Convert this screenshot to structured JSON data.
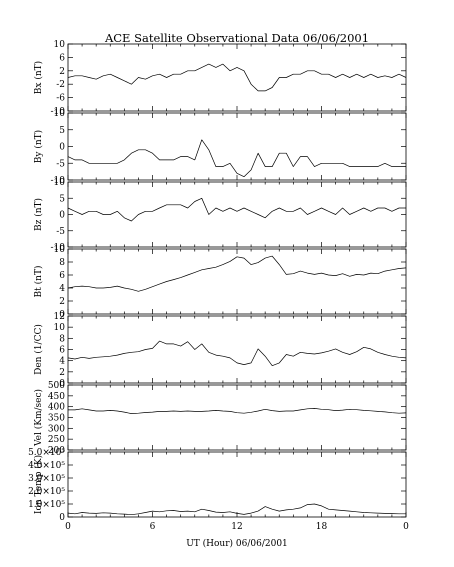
{
  "chart_data": {
    "type": "line",
    "title": "ACE Satellite Observational Data   06/06/2001",
    "xlabel": "UT (Hour)   06/06/2001",
    "xlim": [
      0,
      24
    ],
    "x_tick_labels": [
      "0",
      "6",
      "12",
      "18",
      "0"
    ],
    "panels": [
      {
        "ylabel": "Bx (nT)",
        "ylim": [
          -10,
          10
        ],
        "y_tick_labels": [
          "10",
          "6",
          "2",
          "-2",
          "-6",
          "-10"
        ],
        "series": [
          {
            "x": [
              0,
              0.5,
              1,
              1.5,
              2,
              2.5,
              3,
              3.5,
              4,
              4.5,
              5,
              5.5,
              6,
              6.5,
              7,
              7.5,
              8,
              8.5,
              9,
              9.5,
              10,
              10.5,
              11,
              11.5,
              12,
              12.5,
              13,
              13.5,
              14,
              14.5,
              15,
              15.5,
              16,
              16.5,
              17,
              17.5,
              18,
              18.5,
              19,
              19.5,
              20,
              20.5,
              21,
              21.5,
              22,
              22.5,
              23,
              23.5,
              24
            ],
            "y": [
              0,
              0.5,
              0.5,
              0,
              -0.5,
              0.5,
              1,
              0,
              -1,
              -2,
              0,
              -0.5,
              0.5,
              1,
              0,
              1,
              1,
              2,
              2,
              3,
              4,
              3,
              4,
              2,
              3,
              2,
              -2,
              -4,
              -4,
              -3,
              0,
              0,
              1,
              1,
              2,
              2,
              1,
              1,
              0,
              1,
              0,
              1,
              0,
              1,
              0,
              0.5,
              0,
              1,
              0
            ]
          }
        ]
      },
      {
        "ylabel": "By (nT)",
        "ylim": [
          -10,
          10
        ],
        "y_tick_labels": [
          "10",
          "5",
          "0",
          "-5",
          "-10"
        ],
        "series": [
          {
            "x": [
              0,
              0.5,
              1,
              1.5,
              2,
              2.5,
              3,
              3.5,
              4,
              4.5,
              5,
              5.5,
              6,
              6.5,
              7,
              7.5,
              8,
              8.5,
              9,
              9.5,
              10,
              10.5,
              11,
              11.5,
              12,
              12.5,
              13,
              13.5,
              14,
              14.5,
              15,
              15.5,
              16,
              16.5,
              17,
              17.5,
              18,
              18.5,
              19,
              19.5,
              20,
              20.5,
              21,
              21.5,
              22,
              22.5,
              23,
              23.5,
              24
            ],
            "y": [
              -3,
              -4,
              -4,
              -5,
              -5,
              -5,
              -5,
              -5,
              -4,
              -2,
              -1,
              -1,
              -2,
              -4,
              -4,
              -4,
              -3,
              -3,
              -4,
              2,
              -1,
              -6,
              -6,
              -5,
              -8,
              -9,
              -7,
              -2,
              -6,
              -6,
              -2,
              -2,
              -6,
              -3,
              -3,
              -6,
              -5,
              -5,
              -5,
              -5,
              -6,
              -6,
              -6,
              -6,
              -6,
              -5,
              -6,
              -6,
              -6
            ]
          }
        ]
      },
      {
        "ylabel": "Bz (nT)",
        "ylim": [
          -10,
          10
        ],
        "y_tick_labels": [
          "10",
          "5",
          "0",
          "-5",
          "-10"
        ],
        "series": [
          {
            "x": [
              0,
              0.5,
              1,
              1.5,
              2,
              2.5,
              3,
              3.5,
              4,
              4.5,
              5,
              5.5,
              6,
              6.5,
              7,
              7.5,
              8,
              8.5,
              9,
              9.5,
              10,
              10.5,
              11,
              11.5,
              12,
              12.5,
              13,
              13.5,
              14,
              14.5,
              15,
              15.5,
              16,
              16.5,
              17,
              17.5,
              18,
              18.5,
              19,
              19.5,
              20,
              20.5,
              21,
              21.5,
              22,
              22.5,
              23,
              23.5,
              24
            ],
            "y": [
              2,
              1,
              0,
              1,
              1,
              0,
              0,
              1,
              -1,
              -2,
              0,
              1,
              1,
              2,
              3,
              3,
              3,
              2,
              4,
              5,
              0,
              2,
              1,
              2,
              1,
              2,
              1,
              0,
              -1,
              1,
              2,
              1,
              1,
              2,
              0,
              1,
              2,
              1,
              0,
              2,
              0,
              1,
              2,
              1,
              2,
              2,
              1,
              2,
              2
            ]
          }
        ]
      },
      {
        "ylabel": "Bt (nT)",
        "ylim": [
          0,
          10
        ],
        "y_tick_labels": [
          "10",
          "8",
          "6",
          "4",
          "2",
          "0"
        ],
        "series": [
          {
            "x": [
              0,
              0.5,
              1,
              1.5,
              2,
              2.5,
              3,
              3.5,
              4,
              4.5,
              5,
              5.5,
              6,
              6.5,
              7,
              7.5,
              8,
              8.5,
              9,
              9.5,
              10,
              10.5,
              11,
              11.5,
              12,
              12.5,
              13,
              13.5,
              14,
              14.5,
              15,
              15.5,
              16,
              16.5,
              17,
              17.5,
              18,
              18.5,
              19,
              19.5,
              20,
              20.5,
              21,
              21.5,
              22,
              22.5,
              23,
              23.5,
              24
            ],
            "y": [
              4,
              4.2,
              4.3,
              4.2,
              4,
              4,
              4.1,
              4.3,
              4,
              3.8,
              3.5,
              3.8,
              4.2,
              4.6,
              5,
              5.3,
              5.6,
              6,
              6.4,
              6.8,
              7,
              7.2,
              7.6,
              8.1,
              8.8,
              8.6,
              7.6,
              7.9,
              8.6,
              8.9,
              7.6,
              6.1,
              6.2,
              6.6,
              6.3,
              6.1,
              6.3,
              6,
              5.9,
              6.2,
              5.8,
              6.1,
              6,
              6.3,
              6.2,
              6.6,
              6.8,
              7,
              7.1
            ]
          }
        ]
      },
      {
        "ylabel": "Den (1/CC)",
        "ylim": [
          0,
          12
        ],
        "y_tick_labels": [
          "12",
          "10",
          "8",
          "6",
          "4",
          "2",
          "0"
        ],
        "series": [
          {
            "x": [
              0,
              0.5,
              1,
              1.5,
              2,
              2.5,
              3,
              3.5,
              4,
              4.5,
              5,
              5.5,
              6,
              6.5,
              7,
              7.5,
              8,
              8.5,
              9,
              9.5,
              10,
              10.5,
              11,
              11.5,
              12,
              12.5,
              13,
              13.5,
              14,
              14.5,
              15,
              15.5,
              16,
              16.5,
              17,
              17.5,
              18,
              18.5,
              19,
              19.5,
              20,
              20.5,
              21,
              21.5,
              22,
              22.5,
              23,
              23.5,
              24
            ],
            "y": [
              4.5,
              4.3,
              4.6,
              4.4,
              4.6,
              4.7,
              4.8,
              5,
              5.3,
              5.5,
              5.6,
              6,
              6.2,
              7.5,
              7,
              7,
              6.6,
              7.4,
              6,
              7,
              5.5,
              5,
              4.8,
              4.5,
              3.6,
              3.3,
              3.6,
              6.1,
              4.8,
              3.1,
              3.6,
              5.1,
              4.8,
              5.5,
              5.3,
              5.2,
              5.4,
              5.7,
              6.1,
              5.5,
              5.1,
              5.6,
              6.4,
              6.1,
              5.5,
              5.1,
              4.8,
              4.6,
              4.5
            ]
          }
        ]
      },
      {
        "ylabel": "Vel (Km/sec)",
        "ylim": [
          200,
          500
        ],
        "y_tick_labels": [
          "500",
          "450",
          "400",
          "350",
          "300",
          "250",
          "200"
        ],
        "series": [
          {
            "x": [
              0,
              0.5,
              1,
              1.5,
              2,
              2.5,
              3,
              3.5,
              4,
              4.5,
              5,
              5.5,
              6,
              6.5,
              7,
              7.5,
              8,
              8.5,
              9,
              9.5,
              10,
              10.5,
              11,
              11.5,
              12,
              12.5,
              13,
              13.5,
              14,
              14.5,
              15,
              15.5,
              16,
              16.5,
              17,
              17.5,
              18,
              18.5,
              19,
              19.5,
              20,
              20.5,
              21,
              21.5,
              22,
              22.5,
              23,
              23.5,
              24
            ],
            "y": [
              385,
              385,
              390,
              385,
              380,
              380,
              383,
              380,
              375,
              368,
              370,
              373,
              375,
              378,
              378,
              380,
              378,
              380,
              378,
              378,
              380,
              383,
              380,
              378,
              372,
              370,
              374,
              380,
              388,
              382,
              378,
              380,
              380,
              385,
              390,
              392,
              388,
              386,
              382,
              384,
              388,
              386,
              383,
              381,
              378,
              376,
              372,
              370,
              371
            ]
          }
        ]
      },
      {
        "ylabel": "Ion Temp (K)",
        "ylim": [
          0,
          500000
        ],
        "y_tick_labels": [
          "5.0×10⁵",
          "4.0×10⁵",
          "3.0×10⁵",
          "2.0×10⁵",
          "1.0×10⁵",
          "0"
        ],
        "series": [
          {
            "x": [
              0,
              0.5,
              1,
              1.5,
              2,
              2.5,
              3,
              3.5,
              4,
              4.5,
              5,
              5.5,
              6,
              6.5,
              7,
              7.5,
              8,
              8.5,
              9,
              9.5,
              10,
              10.5,
              11,
              11.5,
              12,
              12.5,
              13,
              13.5,
              14,
              14.5,
              15,
              15.5,
              16,
              16.5,
              17,
              17.5,
              18,
              18.5,
              19,
              19.5,
              20,
              20.5,
              21,
              21.5,
              22,
              22.5,
              23,
              23.5,
              24
            ],
            "y": [
              30000,
              25000,
              35000,
              30000,
              28000,
              32000,
              30000,
              25000,
              22000,
              18000,
              25000,
              35000,
              45000,
              40000,
              48000,
              50000,
              42000,
              45000,
              40000,
              60000,
              50000,
              38000,
              35000,
              40000,
              28000,
              20000,
              30000,
              45000,
              80000,
              60000,
              45000,
              55000,
              60000,
              70000,
              95000,
              100000,
              85000,
              60000,
              55000,
              50000,
              45000,
              40000,
              35000,
              32000,
              30000,
              28000,
              26000,
              25000,
              25000
            ]
          }
        ]
      }
    ]
  }
}
